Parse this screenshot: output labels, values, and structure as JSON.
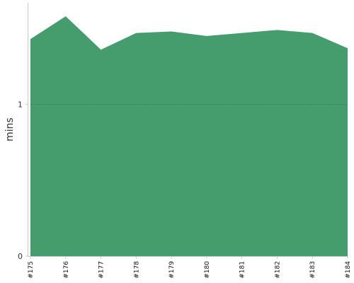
{
  "chart_data": {
    "type": "area",
    "title": "",
    "xlabel": "",
    "ylabel": "mins",
    "categories": [
      "#175",
      "#176",
      "#177",
      "#178",
      "#179",
      "#180",
      "#181",
      "#182",
      "#183",
      "#184"
    ],
    "series": [
      {
        "values": [
          1.43,
          1.58,
          1.36,
          1.47,
          1.48,
          1.45,
          1.47,
          1.49,
          1.47,
          1.37
        ]
      }
    ],
    "ylim": [
      0,
      1.65
    ],
    "yticks": [
      0,
      1
    ],
    "grid": "horizontal dashed at 1",
    "legend": "none",
    "colors": {
      "area_fill": "#459c6c",
      "grid": "#2f7a4c",
      "axis": "#c8c8c8"
    }
  }
}
